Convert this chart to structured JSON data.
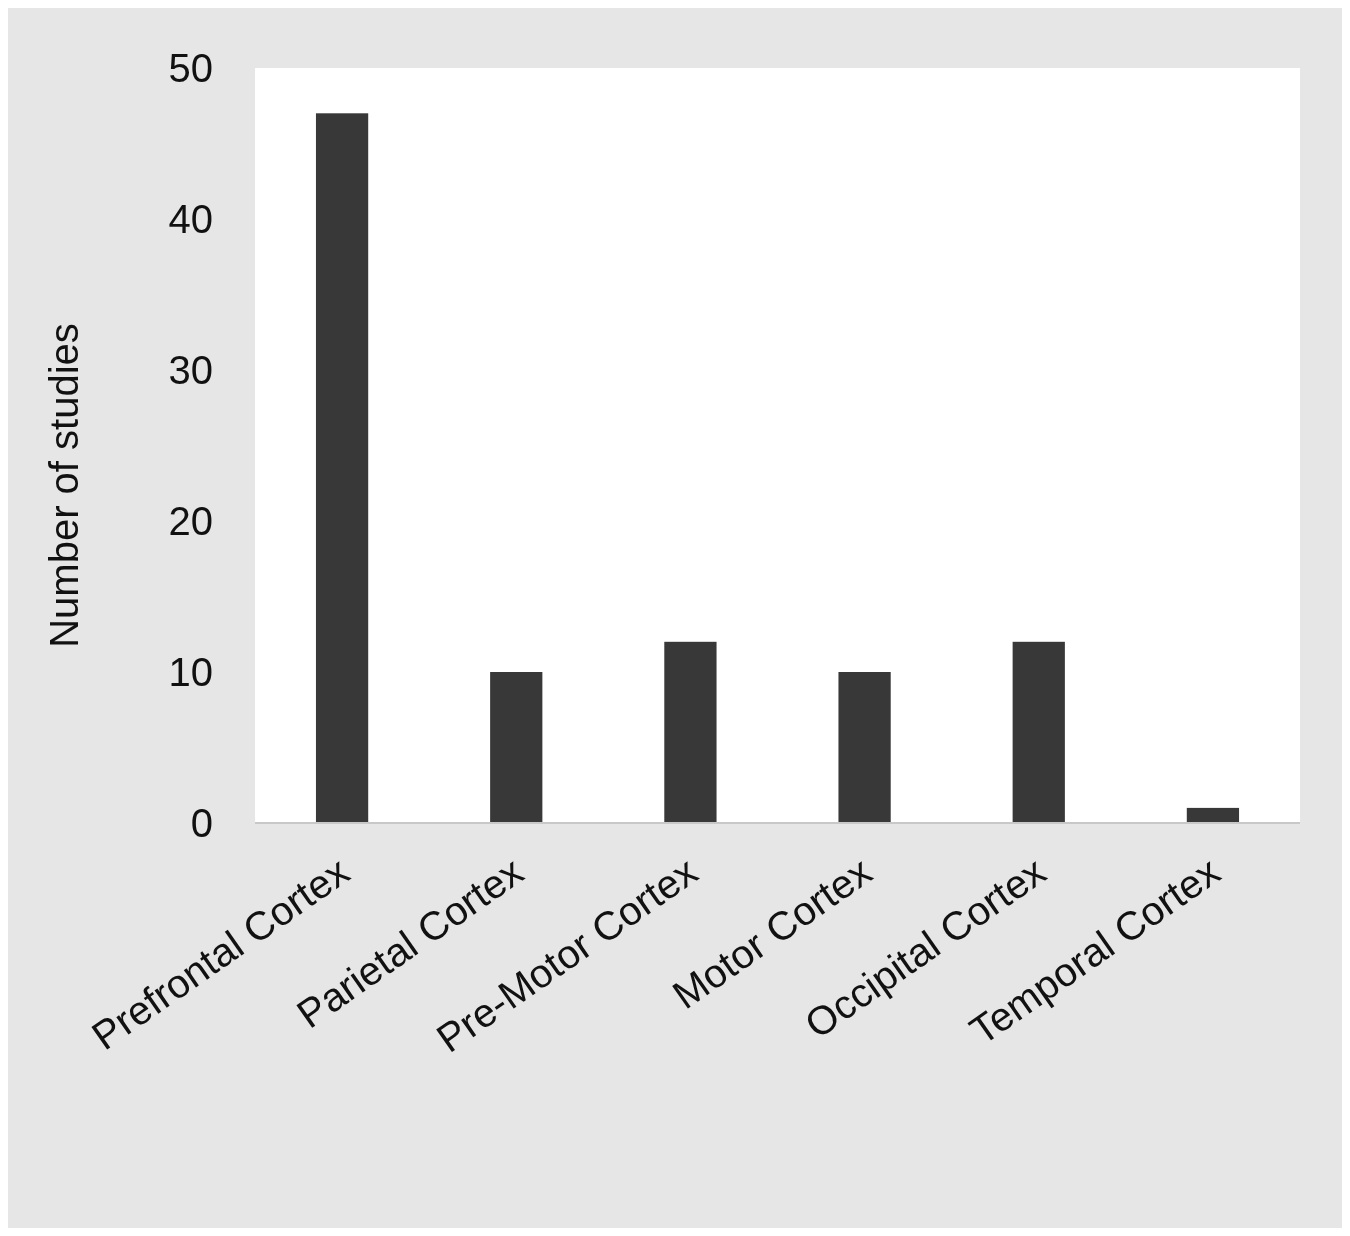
{
  "chart_data": {
    "type": "bar",
    "ylabel": "Number of studies",
    "categories": [
      "Prefrontal Cortex",
      "Parietal Cortex",
      "Pre-Motor Cortex",
      "Motor Cortex",
      "Occipital Cortex",
      "Temporal Cortex"
    ],
    "values": [
      47,
      10,
      12,
      10,
      12,
      1
    ],
    "color": "#383838",
    "ylim": [
      0,
      50
    ],
    "yticks": [
      0,
      10,
      20,
      30,
      40,
      50
    ],
    "grid": false
  }
}
